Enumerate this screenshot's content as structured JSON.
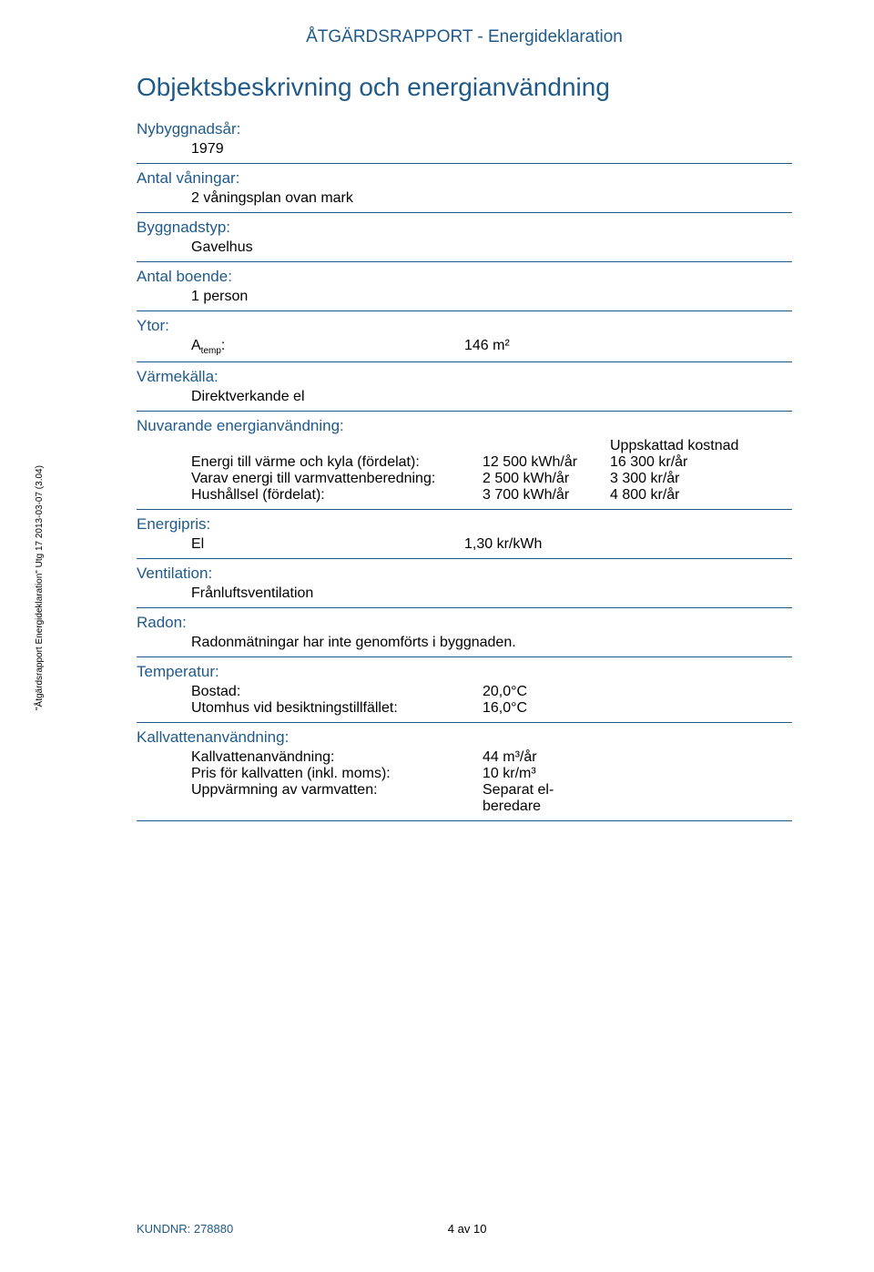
{
  "colors": {
    "primary": "#1f5a8a",
    "text": "#000000",
    "background": "#ffffff"
  },
  "typography": {
    "body_family": "Arial, Helvetica, sans-serif",
    "header_fontsize": 19,
    "section_title_fontsize": 28,
    "label_fontsize": 17,
    "value_fontsize": 16,
    "footer_fontsize": 13,
    "sidebar_fontsize": 10
  },
  "header": {
    "title": "ÅTGÄRDSRAPPORT - Energideklaration"
  },
  "section": {
    "title": "Objektsbeskrivning och energianvändning"
  },
  "nybyggnadsar": {
    "label": "Nybyggnadsår:",
    "value": "1979"
  },
  "vaningar": {
    "label": "Antal våningar:",
    "value": "2 våningsplan ovan mark"
  },
  "byggnadstyp": {
    "label": "Byggnadstyp:",
    "value": "Gavelhus"
  },
  "boende": {
    "label": "Antal boende:",
    "value": "1 person"
  },
  "ytor": {
    "label": "Ytor:",
    "col1": "Atemp:",
    "col2": "146  m²"
  },
  "varmekalla": {
    "label": "Värmekälla:",
    "value": "Direktverkande el"
  },
  "usage": {
    "label": "Nuvarande energianvändning:",
    "cost_header": "Uppskattad kostnad",
    "rows": [
      {
        "name": "Energi till värme och kyla (fördelat):",
        "amount": "12 500 kWh/år",
        "cost": "16 300 kr/år"
      },
      {
        "name": "Varav energi till varmvattenberedning:",
        "amount": "2 500 kWh/år",
        "cost": "3 300 kr/år"
      },
      {
        "name": "Hushållsel (fördelat):",
        "amount": "3 700 kWh/år",
        "cost": "4 800 kr/år"
      }
    ]
  },
  "energipris": {
    "label": "Energipris:",
    "col1": "El",
    "col2": "1,30 kr/kWh"
  },
  "ventilation": {
    "label": "Ventilation:",
    "value": "Frånluftsventilation"
  },
  "radon": {
    "label": "Radon:",
    "value": "Radonmätningar har inte genomförts i byggnaden."
  },
  "temperatur": {
    "label": "Temperatur:",
    "rows": [
      {
        "name": "Bostad:",
        "value": "20,0°C"
      },
      {
        "name": "Utomhus vid besiktningstillfället:",
        "value": "16,0°C"
      }
    ]
  },
  "kallvatten": {
    "label": "Kallvattenanvändning:",
    "rows": [
      {
        "name": "Kallvattenanvändning:",
        "value": "44 m³/år"
      },
      {
        "name": "Pris för kallvatten (inkl. moms):",
        "value": "10 kr/m³"
      },
      {
        "name": "Uppvärmning av varmvatten:",
        "value": "Separat el-beredare"
      }
    ]
  },
  "sidebar": "\"Åtgärdsrapport Energideklaration\" Utg 17 2013-03-07 (3.04)",
  "footer": {
    "left": "KUNDNR: 278880",
    "center": "4 av 10"
  }
}
